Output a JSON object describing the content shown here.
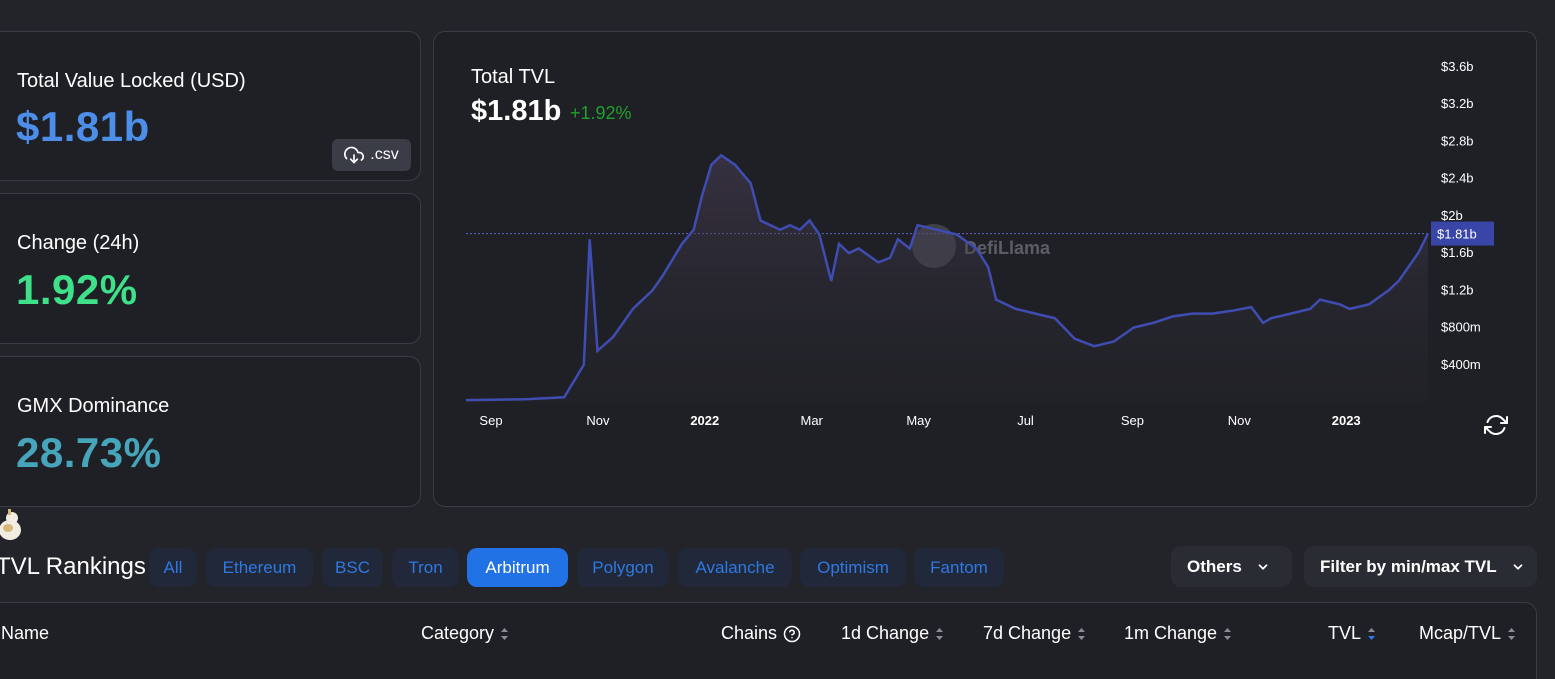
{
  "stats": {
    "tvl": {
      "label": "Total Value Locked (USD)",
      "value": "$1.81b",
      "color": "#4d8fe8"
    },
    "change": {
      "label": "Change (24h)",
      "value": "1.92%",
      "color": "#3ee089"
    },
    "dominance": {
      "label": "GMX Dominance",
      "value": "28.73%",
      "color": "#46a5ba"
    },
    "csv_label": ".csv"
  },
  "chart": {
    "title": "Total TVL",
    "value": "$1.81b",
    "change": "+1.92%",
    "watermark": "DefiLlama",
    "current_label": "$1.81b"
  },
  "chart_data": {
    "type": "area",
    "title": "Total TVL",
    "y_ticks": [
      "$3.6b",
      "$3.2b",
      "$2.8b",
      "$2.4b",
      "$2b",
      "$1.6b",
      "$1.2b",
      "$800m",
      "$400m"
    ],
    "x_ticks": [
      "Sep",
      "Nov",
      "2022",
      "Mar",
      "May",
      "Jul",
      "Sep",
      "Nov",
      "2023"
    ],
    "ylim": [
      0,
      3.6
    ],
    "y_unit": "billion USD",
    "current_value": 1.81,
    "series": [
      {
        "x": [
          0,
          3,
          5,
          6,
          6.3,
          6.7,
          7.5,
          8.5,
          9.5,
          10,
          11,
          11.6,
          12,
          12.5,
          13,
          13.7,
          14.5,
          15,
          16,
          16.5,
          17,
          17.5,
          18,
          18.6,
          19,
          19.5,
          20,
          21,
          21.6,
          22,
          22.6,
          23,
          24,
          25,
          26,
          26.6,
          27,
          28,
          29,
          30,
          31,
          32,
          33,
          34,
          35,
          36,
          37,
          38,
          39,
          40,
          40.6,
          41,
          42,
          43,
          43.5,
          44.5,
          45,
          46,
          47,
          47.5,
          48,
          48.5,
          49
        ],
        "values": [
          0.02,
          0.03,
          0.05,
          0.4,
          1.75,
          0.55,
          0.7,
          1.0,
          1.2,
          1.35,
          1.7,
          1.85,
          2.2,
          2.55,
          2.65,
          2.55,
          2.35,
          1.95,
          1.85,
          1.9,
          1.85,
          1.95,
          1.8,
          1.3,
          1.7,
          1.6,
          1.65,
          1.5,
          1.55,
          1.75,
          1.65,
          1.9,
          1.85,
          1.8,
          1.65,
          1.45,
          1.1,
          1.0,
          0.95,
          0.9,
          0.68,
          0.6,
          0.65,
          0.8,
          0.85,
          0.92,
          0.95,
          0.95,
          0.98,
          1.02,
          0.85,
          0.9,
          0.95,
          1.0,
          1.1,
          1.05,
          1.0,
          1.05,
          1.2,
          1.3,
          1.45,
          1.6,
          1.81
        ]
      }
    ]
  },
  "rankings": {
    "title": "TVL Rankings",
    "tabs": [
      "All",
      "Ethereum",
      "BSC",
      "Tron",
      "Arbitrum",
      "Polygon",
      "Avalanche",
      "Optimism",
      "Fantom"
    ],
    "active_tab": "Arbitrum",
    "others_label": "Others",
    "filter_label": "Filter by min/max TVL",
    "columns": {
      "name": "Name",
      "category": "Category",
      "chains": "Chains",
      "d1": "1d Change",
      "d7": "7d Change",
      "m1": "1m Change",
      "tvl": "TVL",
      "mcap": "Mcap/TVL"
    }
  },
  "colors": {
    "background": "#222429",
    "card": "#1f2025",
    "accent": "#2172e5",
    "line": "#3f4db2",
    "positive": "#1fa12c"
  }
}
